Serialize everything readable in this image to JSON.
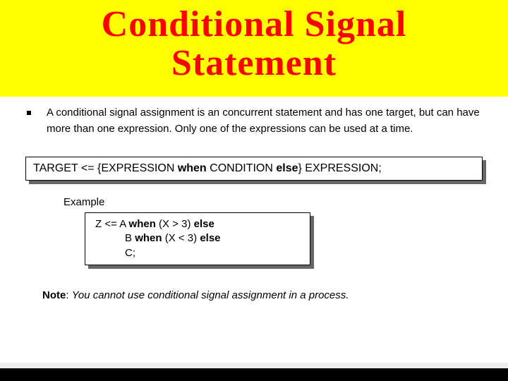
{
  "title_line1": "Conditional Signal",
  "title_line2": "Statement",
  "colors": {
    "title_bg": "#ffff00",
    "title_text": "#ff0000",
    "box_shadow": "#666666",
    "box_border": "#000000",
    "body_bg": "#ffffff",
    "bottom_bar": "#000000"
  },
  "fontsizes": {
    "title": 52,
    "body": 15,
    "syntax": 16
  },
  "description": "A conditional signal assignment is an concurrent statement and has one target, but can have more than one expression.  Only one of the expressions can be used at a time.",
  "syntax": {
    "p1": "TARGET <= {EXPRESSION ",
    "kw1": "when",
    "p2": " CONDITION ",
    "kw2": "else",
    "p3": "} EXPRESSION;"
  },
  "example_label": "Example",
  "example": {
    "l1a": "Z <= A ",
    "l1w": "when",
    "l1b": " (X > 3) ",
    "l1e": "else",
    "l2a": "B ",
    "l2w": "when",
    "l2b": " (X < 3) ",
    "l2e": "else",
    "l3": "C;"
  },
  "note_label": "Note",
  "note_sep": ": ",
  "note_text": "You cannot use conditional signal assignment in a process."
}
